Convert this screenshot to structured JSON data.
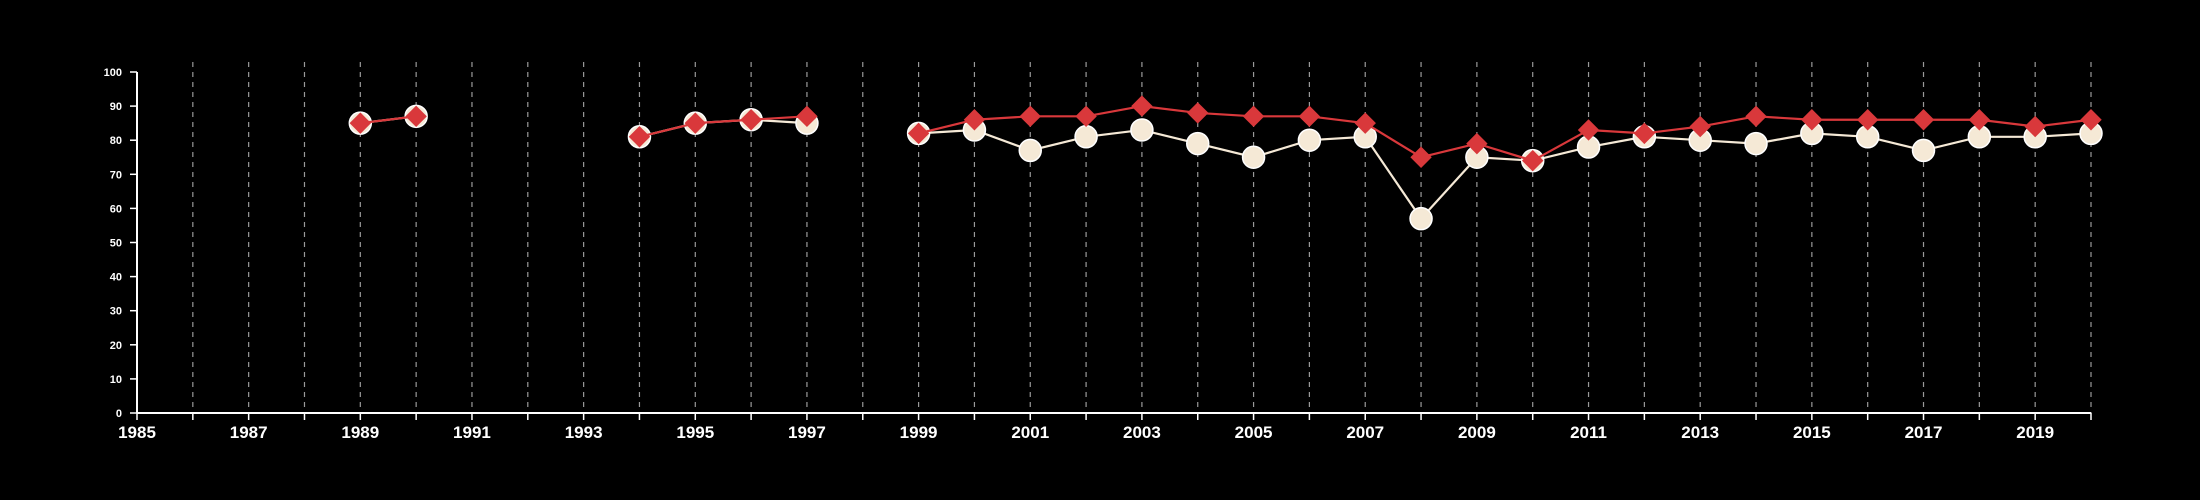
{
  "chart_data": {
    "type": "line",
    "title": "",
    "xlabel": "",
    "ylabel": "",
    "xlim": [
      1985,
      2020
    ],
    "ylim": [
      0,
      100
    ],
    "x_ticks": [
      1985,
      1987,
      1989,
      1991,
      1993,
      1995,
      1997,
      1999,
      2001,
      2003,
      2005,
      2007,
      2009,
      2011,
      2013,
      2015,
      2017,
      2019
    ],
    "y_ticks": [
      0,
      10,
      20,
      30,
      40,
      50,
      60,
      70,
      80,
      90,
      100
    ],
    "vertical_gridlines": "dashed, every year",
    "horizontal_gridlines": false,
    "legend": "none",
    "colors": {
      "background": "#000000",
      "axis": "#ffffff",
      "gridline": "#9a9a9a",
      "series_1": "#f5e9d6",
      "series_2": "#d9383b"
    },
    "x": [
      1985,
      1986,
      1987,
      1988,
      1989,
      1990,
      1991,
      1992,
      1993,
      1994,
      1995,
      1996,
      1997,
      1998,
      1999,
      2000,
      2001,
      2002,
      2003,
      2004,
      2005,
      2006,
      2007,
      2008,
      2009,
      2010,
      2011,
      2012,
      2013,
      2014,
      2015,
      2016,
      2017,
      2018,
      2019,
      2020
    ],
    "series": [
      {
        "marker": "circle",
        "color": "#f5e9d6",
        "values": [
          null,
          null,
          null,
          null,
          85,
          87,
          null,
          null,
          null,
          81,
          85,
          86,
          85,
          null,
          82,
          83,
          77,
          81,
          83,
          79,
          75,
          80,
          81,
          57,
          75,
          74,
          78,
          81,
          80,
          79,
          82,
          81,
          77,
          81,
          81,
          82
        ]
      },
      {
        "marker": "diamond",
        "color": "#d9383b",
        "values": [
          null,
          null,
          null,
          null,
          85,
          87,
          null,
          null,
          null,
          81,
          85,
          86,
          87,
          null,
          82,
          86,
          87,
          87,
          90,
          88,
          87,
          87,
          85,
          75,
          79,
          74,
          83,
          82,
          84,
          87,
          86,
          86,
          86,
          86,
          84,
          86
        ]
      }
    ]
  }
}
